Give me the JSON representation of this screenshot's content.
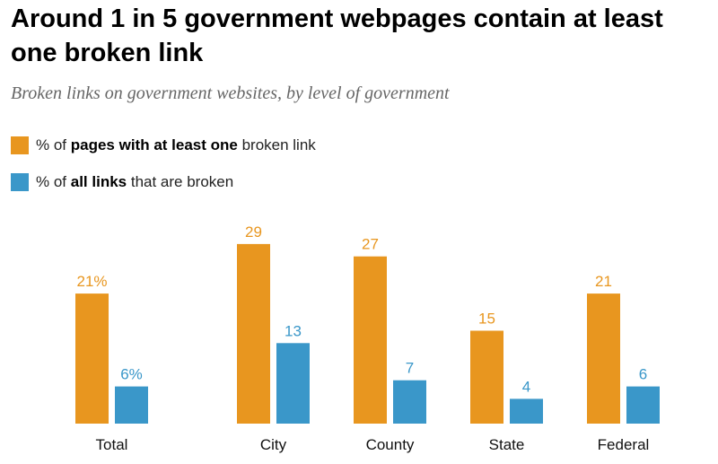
{
  "chart_data": {
    "type": "bar",
    "title_line1": "Around 1 in 5 government webpages contain at least",
    "title_line2": "one broken link",
    "subtitle": "Broken links on government websites, by level of government",
    "categories": [
      "Total",
      "City",
      "County",
      "State",
      "Federal"
    ],
    "series": [
      {
        "name": "% of pages with at least one broken link",
        "legend_parts": [
          "% of ",
          "pages with at least one",
          " broken link"
        ],
        "color": "#E8961F",
        "values": [
          21,
          29,
          27,
          15,
          21
        ],
        "labels": [
          "21%",
          "29",
          "27",
          "15",
          "21"
        ]
      },
      {
        "name": "% of all links that are broken",
        "legend_parts": [
          "% of ",
          "all links",
          " that are broken"
        ],
        "color": "#3A97C9",
        "values": [
          6,
          13,
          7,
          4,
          6
        ],
        "labels": [
          "6%",
          "13",
          "7",
          "4",
          "6"
        ]
      }
    ],
    "ylim": [
      0,
      29
    ],
    "grid": false,
    "legend_position": "top-left"
  }
}
